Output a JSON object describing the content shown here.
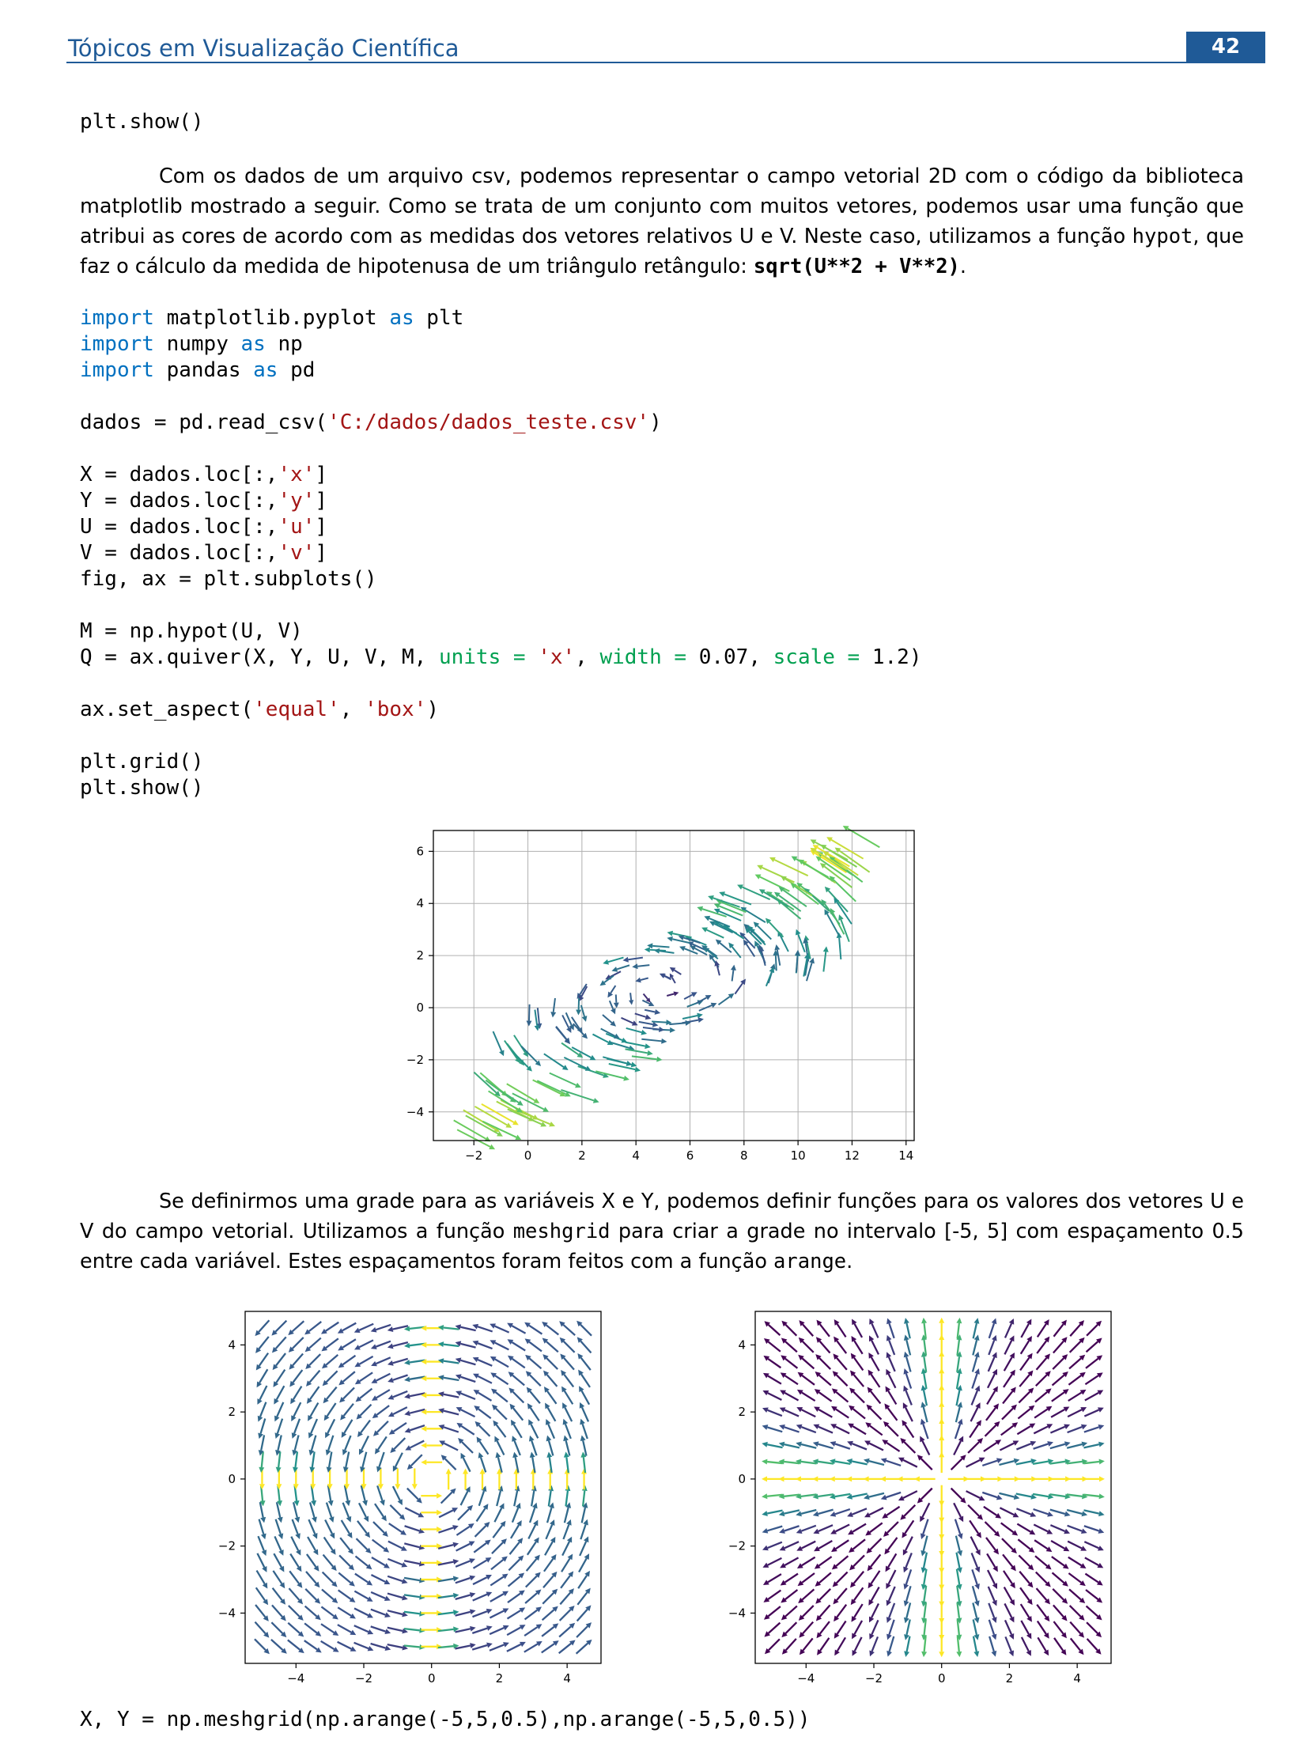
{
  "header": {
    "title": "Tópicos em Visualização Científica",
    "page_number": "42"
  },
  "code1": {
    "line": "plt.show()"
  },
  "para1": {
    "t1": "Com os dados de um arquivo csv, podemos representar o campo vetorial 2D com o código da biblioteca matplotlib mostrado a seguir. Como se trata de um conjunto com muitos vetores, podemos usar uma função que atribui as cores de acordo com as medidas dos vetores relativos U e V. Neste caso, utilizamos a função ",
    "code": "hypot",
    "t2": ", que faz o cálculo da medida de hipotenusa de um triângulo retângulo: ",
    "bold": "sqrt(U**2 + V**2)",
    "t3": "."
  },
  "code2": {
    "import": "import",
    "as": "as",
    "m1": " matplotlib.pyplot ",
    "a1": " plt",
    "m2": " numpy ",
    "a2": " np",
    "m3": " pandas ",
    "a3": " pd",
    "dados_pre": "dados = pd.read_csv(",
    "dados_str": "'C:/dados/dados_teste.csv'",
    "dados_post": ")",
    "x_pre": "X = dados.loc[:,",
    "x_str": "'x'",
    "y_pre": "Y = dados.loc[:,",
    "y_str": "'y'",
    "u_pre": "U = dados.loc[:,",
    "u_str": "'u'",
    "v_pre": "V = dados.loc[:,",
    "v_str": "'v'",
    "close": "]",
    "fig": "fig, ax = plt.subplots()",
    "m_line": "M = np.hypot(U, V)",
    "q_pre": "Q = ax.quiver(X, Y, U, V, M, ",
    "q_units": "units = ",
    "q_units_v": "'x'",
    "q_sep": ", ",
    "q_width": "width = ",
    "q_width_v": "0.07",
    "q_scale": "scale = ",
    "q_scale_v": "1.2)",
    "aspect_pre": "ax.set_aspect(",
    "aspect_s1": "'equal'",
    "aspect_sep": ", ",
    "aspect_s2": "'box'",
    "aspect_post": ")",
    "grid": "plt.grid()",
    "show": "plt.show()"
  },
  "para2": {
    "t1": "Se definirmos uma grade para as variáveis X e Y, podemos definir funções para os valores dos vetores U e V do campo vetorial. Utilizamos a função ",
    "code1": "meshgrid",
    "t2": " para criar a grade no intervalo [-5, 5] com espaçamento 0.5 entre cada variável. Estes espaçamentos foram feitos com a função ",
    "code2": "arange",
    "t3": "."
  },
  "code3": {
    "line": "X, Y = np.meshgrid(np.arange(-5,5,0.5),np.arange(-5,5,0.5))"
  },
  "chart_data": [
    {
      "type": "quiver",
      "xlim": [
        -3.5,
        14.3
      ],
      "ylim": [
        -5.1,
        6.8
      ],
      "xticks": [
        "−2",
        "0",
        "2",
        "4",
        "6",
        "8",
        "10",
        "12",
        "14"
      ],
      "yticks": [
        "−4",
        "−2",
        "0",
        "2",
        "4",
        "6"
      ],
      "grid": true,
      "colormap": [
        "#440154",
        "#3b528b",
        "#21918c",
        "#5ec962",
        "#fde725"
      ]
    },
    {
      "type": "quiver",
      "field": "rotational",
      "xlim": [
        -5.5,
        5
      ],
      "ylim": [
        -5.5,
        5
      ],
      "xticks": [
        "−4",
        "−2",
        "0",
        "2",
        "4"
      ],
      "yticks": [
        "−4",
        "−2",
        "0",
        "2",
        "4"
      ]
    },
    {
      "type": "quiver",
      "field": "radial",
      "xlim": [
        -5.5,
        5
      ],
      "ylim": [
        -5.5,
        5
      ],
      "xticks": [
        "−4",
        "−2",
        "0",
        "2",
        "4"
      ],
      "yticks": [
        "−4",
        "−2",
        "0",
        "2",
        "4"
      ]
    }
  ]
}
